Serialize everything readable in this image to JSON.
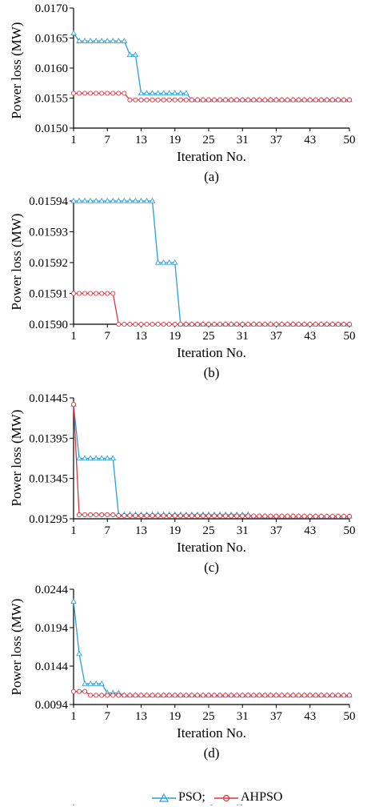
{
  "colors": {
    "pso": "#2a9fd8",
    "ahpso": "#d9363e",
    "axis": "#000000"
  },
  "legend": {
    "pso": "PSO;",
    "ahpso": "AHPSO"
  },
  "caption": "Convergence of standard PSO and AHPSO for different loa",
  "chart_data": [
    {
      "type": "line",
      "panel_label": "(a)",
      "xlabel": "Iteration No.",
      "ylabel": "Power loss (MW)",
      "xlim": [
        1,
        50
      ],
      "ylim": [
        0.015,
        0.017
      ],
      "x_ticks": [
        1,
        7,
        13,
        19,
        25,
        31,
        37,
        43,
        50
      ],
      "y_ticks": [
        "0.0150",
        "0.0155",
        "0.0160",
        "0.0165",
        "0.0170"
      ],
      "series": [
        {
          "name": "PSO",
          "breakpoints": [
            [
              1,
              0.01658
            ],
            [
              2,
              0.01645
            ],
            [
              10,
              0.01645
            ],
            [
              11,
              0.01622
            ],
            [
              12,
              0.01622
            ],
            [
              13,
              0.01558
            ],
            [
              21,
              0.01558
            ],
            [
              22,
              0.01547
            ],
            [
              50,
              0.01547
            ]
          ]
        },
        {
          "name": "AHPSO",
          "breakpoints": [
            [
              1,
              0.01558
            ],
            [
              10,
              0.01558
            ],
            [
              11,
              0.01547
            ],
            [
              50,
              0.01547
            ]
          ]
        }
      ]
    },
    {
      "type": "line",
      "panel_label": "(b)",
      "xlabel": "Iteration No.",
      "ylabel": "Power loss (MW)",
      "xlim": [
        1,
        50
      ],
      "ylim": [
        0.0159,
        0.01594
      ],
      "x_ticks": [
        1,
        7,
        13,
        19,
        25,
        31,
        37,
        43,
        50
      ],
      "y_ticks": [
        "0.01590",
        "0.01591",
        "0.01592",
        "0.01593",
        "0.01594"
      ],
      "series": [
        {
          "name": "PSO",
          "breakpoints": [
            [
              1,
              0.01594
            ],
            [
              15,
              0.01594
            ],
            [
              16,
              0.01592
            ],
            [
              19,
              0.01592
            ],
            [
              20,
              0.0159
            ],
            [
              50,
              0.0159
            ]
          ]
        },
        {
          "name": "AHPSO",
          "breakpoints": [
            [
              1,
              0.01591
            ],
            [
              8,
              0.01591
            ],
            [
              9,
              0.0159
            ],
            [
              50,
              0.0159
            ]
          ]
        }
      ]
    },
    {
      "type": "line",
      "panel_label": "(c)",
      "xlabel": "Iteration No.",
      "ylabel": "Power loss (MW)",
      "xlim": [
        1,
        50
      ],
      "ylim": [
        0.01295,
        0.01445
      ],
      "x_ticks": [
        1,
        7,
        13,
        19,
        25,
        31,
        37,
        43,
        50
      ],
      "y_ticks": [
        "0.01295",
        "0.01345",
        "0.01395",
        "0.01445"
      ],
      "series": [
        {
          "name": "PSO",
          "breakpoints": [
            [
              1,
              0.01437
            ],
            [
              2,
              0.0137
            ],
            [
              8,
              0.0137
            ],
            [
              9,
              0.013
            ],
            [
              32,
              0.013
            ],
            [
              33,
              0.01298
            ],
            [
              50,
              0.01298
            ]
          ]
        },
        {
          "name": "AHPSO",
          "breakpoints": [
            [
              1,
              0.01437
            ],
            [
              2,
              0.013
            ],
            [
              8,
              0.013
            ],
            [
              9,
              0.01299
            ],
            [
              50,
              0.01298
            ]
          ]
        }
      ]
    },
    {
      "type": "line",
      "panel_label": "(d)",
      "xlabel": "Iteration No.",
      "ylabel": "Power loss (MW)",
      "xlim": [
        1,
        50
      ],
      "ylim": [
        0.0094,
        0.0244
      ],
      "x_ticks": [
        1,
        7,
        13,
        19,
        25,
        31,
        37,
        43,
        50
      ],
      "y_ticks": [
        "0.0094",
        "0.0144",
        "0.0194",
        "0.0244"
      ],
      "series": [
        {
          "name": "PSO",
          "breakpoints": [
            [
              1,
              0.0228
            ],
            [
              2,
              0.016
            ],
            [
              3,
              0.0121
            ],
            [
              6,
              0.0121
            ],
            [
              7,
              0.0109
            ],
            [
              9,
              0.0109
            ],
            [
              10,
              0.0106
            ],
            [
              50,
              0.0106
            ]
          ]
        },
        {
          "name": "AHPSO",
          "breakpoints": [
            [
              1,
              0.0111
            ],
            [
              3,
              0.0111
            ],
            [
              4,
              0.0106
            ],
            [
              50,
              0.0106
            ]
          ]
        }
      ]
    }
  ]
}
